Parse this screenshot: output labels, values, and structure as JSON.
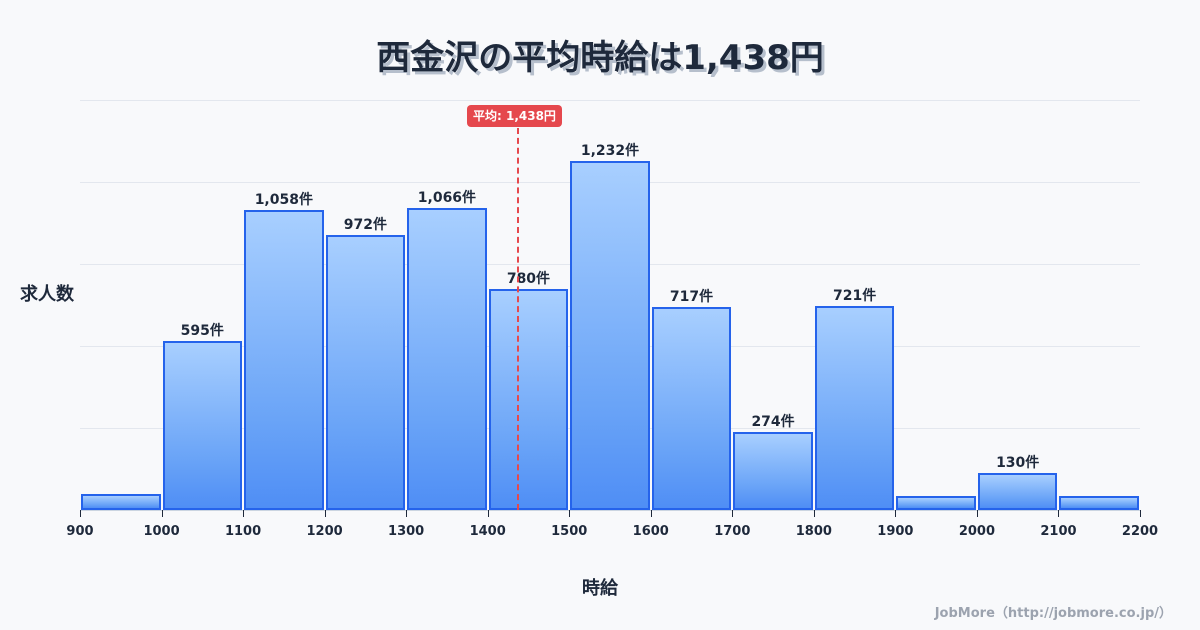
{
  "title": "西金沢の平均時給は1,438円",
  "y_axis_label": "求人数",
  "x_axis_label": "時給",
  "credit": "JobMore（http://jobmore.co.jp/）",
  "mean_badge": "平均: 1,438円",
  "colors": {
    "bar_fill_top": "#a8cfff",
    "bar_fill_bottom": "#4f8ef5",
    "bar_border": "#2563eb",
    "mean_line": "#e5484d",
    "text": "#1e293b",
    "background": "#f8f9fb"
  },
  "chart_data": {
    "type": "bar",
    "subtype": "histogram",
    "title": "西金沢の平均時給は1,438円",
    "xlabel": "時給",
    "ylabel": "求人数",
    "bins": [
      {
        "from": 900,
        "to": 1000,
        "value": 55,
        "label": ""
      },
      {
        "from": 1000,
        "to": 1100,
        "value": 595,
        "label": "595件"
      },
      {
        "from": 1100,
        "to": 1200,
        "value": 1058,
        "label": "1,058件"
      },
      {
        "from": 1200,
        "to": 1300,
        "value": 972,
        "label": "972件"
      },
      {
        "from": 1300,
        "to": 1400,
        "value": 1066,
        "label": "1,066件"
      },
      {
        "from": 1400,
        "to": 1500,
        "value": 780,
        "label": "780件"
      },
      {
        "from": 1500,
        "to": 1600,
        "value": 1232,
        "label": "1,232件"
      },
      {
        "from": 1600,
        "to": 1700,
        "value": 717,
        "label": "717件"
      },
      {
        "from": 1700,
        "to": 1800,
        "value": 274,
        "label": "274件"
      },
      {
        "from": 1800,
        "to": 1900,
        "value": 721,
        "label": "721件"
      },
      {
        "from": 1900,
        "to": 2000,
        "value": 50,
        "label": ""
      },
      {
        "from": 2000,
        "to": 2100,
        "value": 130,
        "label": "130件"
      },
      {
        "from": 2100,
        "to": 2200,
        "value": 45,
        "label": ""
      }
    ],
    "x_ticks": [
      "900",
      "1000",
      "1100",
      "1200",
      "1300",
      "1400",
      "1500",
      "1600",
      "1700",
      "1800",
      "1900",
      "2000",
      "2100",
      "2200"
    ],
    "xlim": [
      900,
      2200
    ],
    "mean": 1438,
    "mean_label": "平均: 1,438円",
    "grid": true,
    "legend": "none"
  }
}
